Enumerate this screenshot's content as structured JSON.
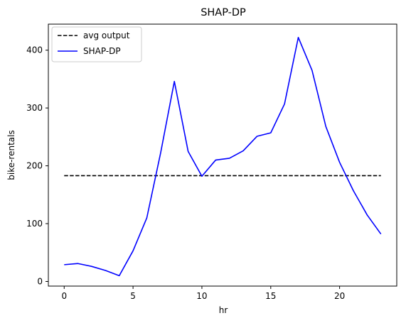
{
  "chart_data": {
    "type": "line",
    "title": "SHAP-DP",
    "xlabel": "hr",
    "ylabel": "bike-rentals",
    "xlim": [
      -1.15,
      24.15
    ],
    "ylim": [
      -8,
      445
    ],
    "xticks": [
      0,
      5,
      10,
      15,
      20
    ],
    "yticks": [
      0,
      100,
      200,
      300,
      400
    ],
    "grid": false,
    "legend_position": "top-left",
    "series": [
      {
        "name": "avg output",
        "style": "dashed",
        "color": "#000000",
        "x": [
          0,
          23
        ],
        "y": [
          183,
          183
        ]
      },
      {
        "name": "SHAP-DP",
        "style": "solid",
        "color": "#0000ff",
        "x": [
          0,
          1,
          2,
          3,
          4,
          5,
          6,
          7,
          8,
          9,
          10,
          11,
          12,
          13,
          14,
          15,
          16,
          17,
          18,
          19,
          20,
          21,
          22,
          23
        ],
        "y": [
          29,
          31,
          26,
          19,
          10,
          53,
          110,
          222,
          346,
          225,
          182,
          210,
          213,
          226,
          251,
          257,
          307,
          422,
          365,
          268,
          206,
          157,
          115,
          82
        ]
      }
    ]
  }
}
